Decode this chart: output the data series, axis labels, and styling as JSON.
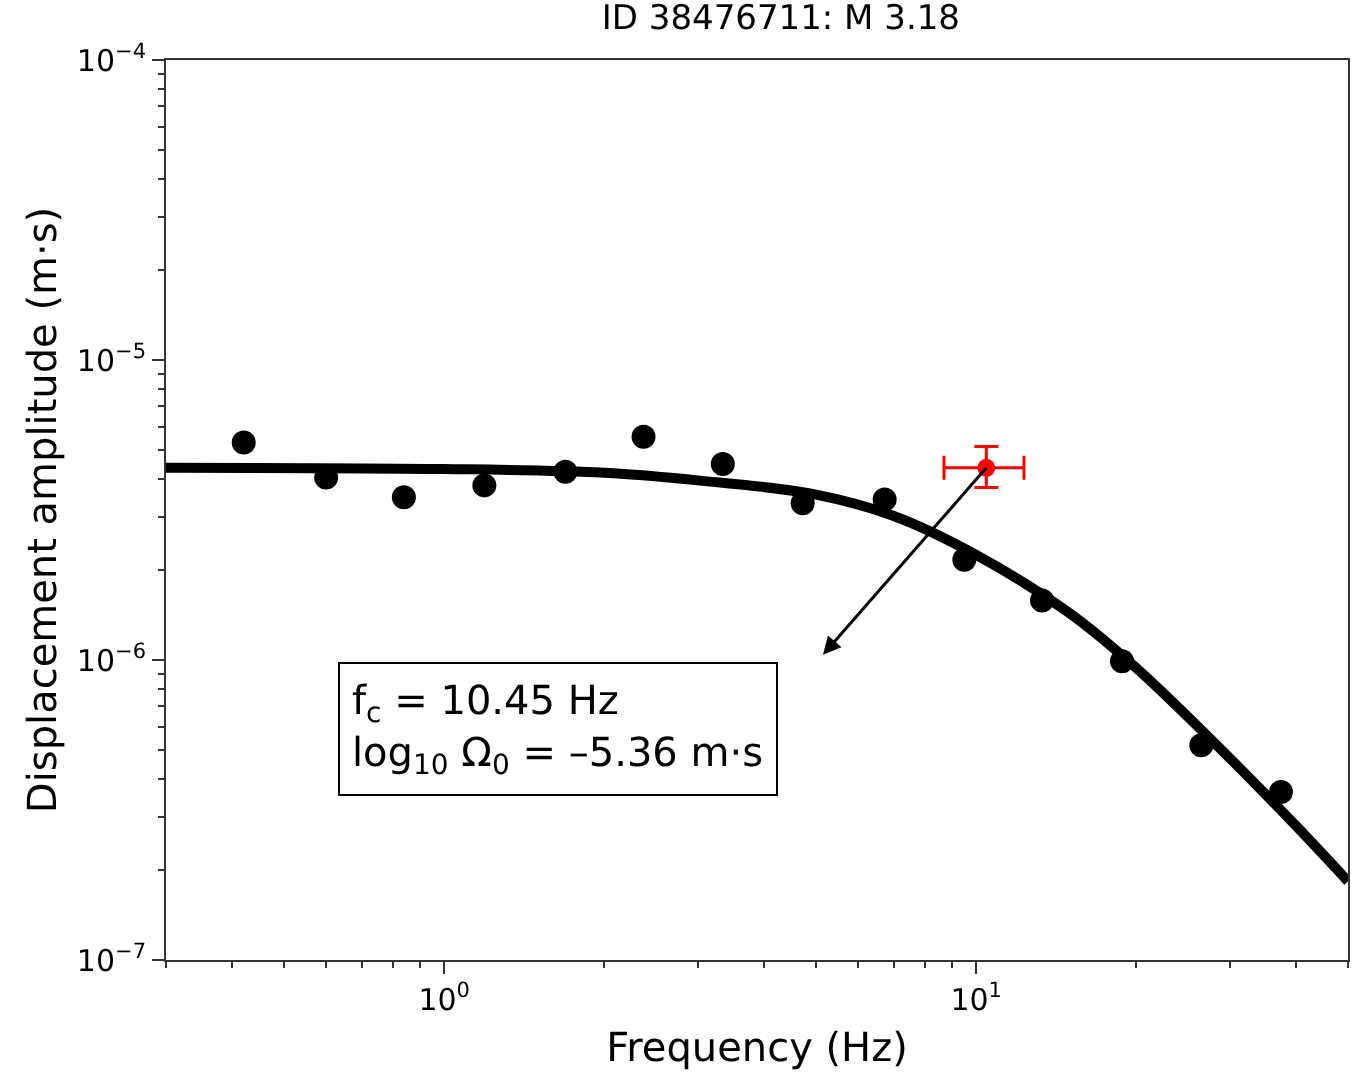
{
  "chart_data": {
    "type": "scatter",
    "title": "ID 38476711: M 3.18",
    "xlabel": "Frequency (Hz)",
    "ylabel": "Displacement amplitude (m·s)",
    "log": "xy",
    "xlim": [
      0.3,
      50
    ],
    "ylim": [
      1e-07,
      0.0001
    ],
    "xticks": [
      {
        "value": 1,
        "label": "10$^{0}$"
      },
      {
        "value": 10,
        "label": "10$^{1}$"
      }
    ],
    "yticks": [
      {
        "value": 1e-07,
        "label": "10$^{−7}$"
      },
      {
        "value": 1e-06,
        "label": "10$^{−6}$"
      },
      {
        "value": 1e-05,
        "label": "10$^{−5}$"
      },
      {
        "value": 0.0001,
        "label": "10$^{−4}$"
      }
    ],
    "series": [
      {
        "type": "line",
        "color": "#000000",
        "x": [
          0.3,
          1,
          2,
          3,
          5,
          7,
          10,
          15,
          20,
          30,
          40,
          50
        ],
        "values": [
          4.37e-06,
          4.33e-06,
          4.21e-06,
          3.97e-06,
          3.56e-06,
          3.02e-06,
          2.24e-06,
          1.43e-06,
          9.4e-07,
          4.7e-07,
          2.79e-07,
          1.83e-07
        ]
      },
      {
        "marker": "circle",
        "color": "#000000",
        "x": [
          0.42,
          0.6,
          0.84,
          1.19,
          1.69,
          2.37,
          3.34,
          4.72,
          6.73,
          9.5,
          13.3,
          18.8,
          26.5,
          37.4
        ],
        "values": [
          5.31e-06,
          4.06e-06,
          3.49e-06,
          3.82e-06,
          4.24e-06,
          5.55e-06,
          4.5e-06,
          3.33e-06,
          3.43e-06,
          2.16e-06,
          1.58e-06,
          9.9e-07,
          5.2e-07,
          3.63e-07
        ]
      },
      {
        "marker": "circle",
        "color": "#ff0000",
        "x": [
          10.45
        ],
        "values": [
          4.37e-06
        ],
        "errors": [
          [
            3.76e-06,
            5.15e-06
          ]
        ],
        "xerrors": [
          [
            8.7,
            12.3
          ]
        ]
      }
    ],
    "annotations": [
      "f$_{c}$ = 10.45 Hz\nlog$_{10}$ Ω$_{0}$ = –5.36 m·s"
    ]
  }
}
